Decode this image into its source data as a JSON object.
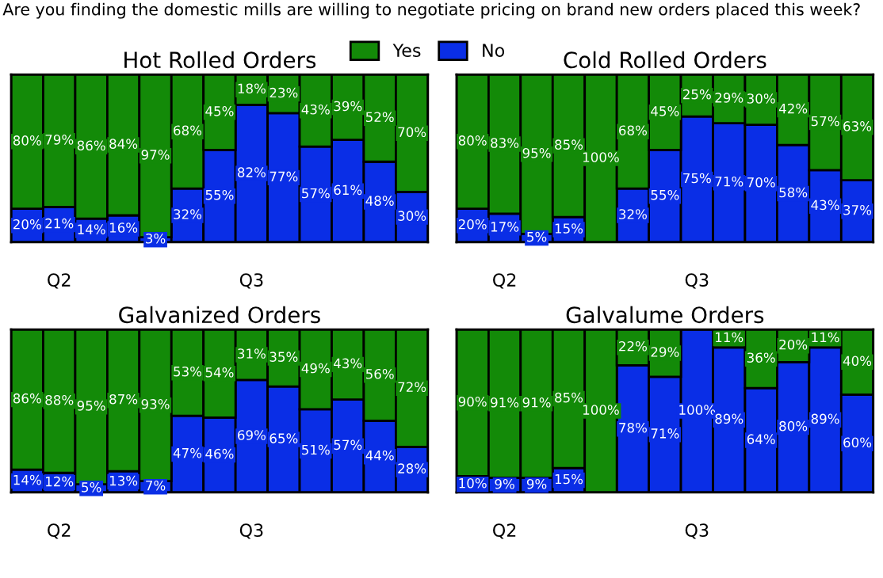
{
  "chart_data": [
    {
      "type": "bar",
      "title": "Are you finding the domestic mills are willing to negotiate pricing on brand new orders placed this week?",
      "subtitle": "Hot Rolled Orders",
      "stacked": true,
      "legend": "top right",
      "tick_labels": "x",
      "ylim": [
        0,
        100
      ],
      "categories": [
        null,
        "Q2",
        null,
        null,
        null,
        null,
        null,
        "Q3",
        null,
        null,
        null,
        null,
        null
      ],
      "series": [
        {
          "name": "No",
          "color": "#0a2ee6",
          "values": [
            20,
            21,
            14,
            16,
            3,
            32,
            55,
            82,
            77,
            57,
            61,
            48,
            30
          ],
          "value_labels": [
            "20%",
            "21%",
            "14%",
            "16%",
            "3%",
            "32%",
            "55%",
            "82%",
            "77%",
            "57%",
            "61%",
            "48%",
            "30%"
          ]
        },
        {
          "name": "Yes",
          "color": "#138a08",
          "values": [
            80,
            79,
            86,
            84,
            97,
            68,
            45,
            18,
            23,
            43,
            39,
            52,
            70
          ],
          "value_labels": [
            "80%",
            "79%",
            "86%",
            "84%",
            "97%",
            "68%",
            "45%",
            "18%",
            "23%",
            "43%",
            "39%",
            "52%",
            "70%"
          ]
        }
      ]
    },
    {
      "type": "bar",
      "subtitle": "Cold Rolled Orders",
      "stacked": true,
      "tick_labels": "x",
      "ylim": [
        0,
        100
      ],
      "categories": [
        null,
        "Q2",
        null,
        null,
        null,
        null,
        null,
        "Q3",
        null,
        null,
        null,
        null,
        null
      ],
      "series": [
        {
          "color": "#0a2ee6",
          "values": [
            20,
            17,
            5,
            15,
            null,
            32,
            55,
            75,
            71,
            70,
            58,
            43,
            37
          ],
          "value_labels": [
            "20%",
            "17%",
            "5%",
            "15%",
            null,
            "32%",
            "55%",
            "75%",
            "71%",
            "70%",
            "58%",
            "43%",
            "37%"
          ]
        },
        {
          "color": "#138a08",
          "values": [
            80,
            83,
            95,
            85,
            100,
            68,
            45,
            25,
            29,
            30,
            42,
            57,
            63
          ],
          "value_labels": [
            "80%",
            "83%",
            "95%",
            "85%",
            "100%",
            "68%",
            "45%",
            "25%",
            "29%",
            "30%",
            "42%",
            "57%",
            "63%"
          ]
        }
      ]
    },
    {
      "type": "bar",
      "subtitle": "Galvanized Orders",
      "stacked": true,
      "tick_labels": "x",
      "ylim": [
        0,
        100
      ],
      "categories": [
        null,
        "Q2",
        null,
        null,
        null,
        null,
        null,
        "Q3",
        null,
        null,
        null,
        null,
        null
      ],
      "series": [
        {
          "color": "#0a2ee6",
          "values": [
            14,
            12,
            5,
            13,
            7,
            47,
            46,
            69,
            65,
            51,
            57,
            44,
            28
          ],
          "value_labels": [
            "14%",
            "12%",
            "5%",
            "13%",
            "7%",
            "47%",
            "46%",
            "69%",
            "65%",
            "51%",
            "57%",
            "44%",
            "28%"
          ]
        },
        {
          "color": "#138a08",
          "values": [
            86,
            88,
            95,
            87,
            93,
            53,
            54,
            31,
            35,
            49,
            43,
            56,
            72
          ],
          "value_labels": [
            "86%",
            "88%",
            "95%",
            "87%",
            "93%",
            "53%",
            "54%",
            "31%",
            "35%",
            "49%",
            "43%",
            "56%",
            "72%"
          ]
        }
      ]
    },
    {
      "type": "bar",
      "subtitle": "Galvalume Orders",
      "stacked": true,
      "tick_labels": "x",
      "ylim": [
        0,
        100
      ],
      "categories": [
        null,
        "Q2",
        null,
        null,
        null,
        null,
        null,
        "Q3",
        null,
        null,
        null,
        null,
        null
      ],
      "series": [
        {
          "color": "#0a2ee6",
          "values": [
            10,
            9,
            9,
            15,
            null,
            78,
            71,
            100,
            89,
            64,
            80,
            89,
            60
          ],
          "value_labels": [
            "10%",
            "9%",
            "9%",
            "15%",
            null,
            "78%",
            "71%",
            "100%",
            "89%",
            "64%",
            "80%",
            "89%",
            "60%"
          ]
        },
        {
          "color": "#138a08",
          "values": [
            90,
            91,
            91,
            85,
            100,
            22,
            29,
            null,
            11,
            36,
            20,
            11,
            40
          ],
          "value_labels": [
            "90%",
            "91%",
            "91%",
            "85%",
            "100%",
            "22%",
            "29%",
            null,
            "11%",
            "36%",
            "20%",
            "11%",
            "40%"
          ]
        }
      ]
    }
  ]
}
